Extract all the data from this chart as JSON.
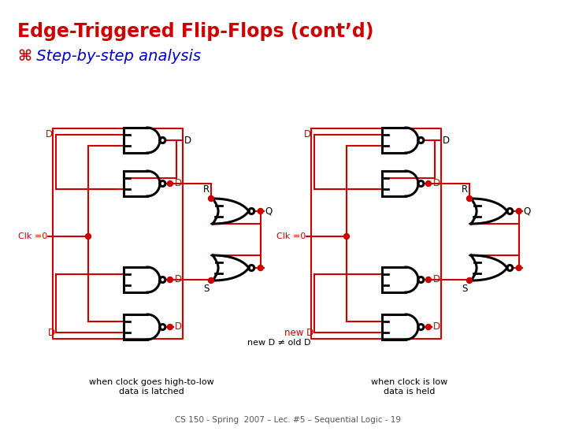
{
  "title": "Edge-Triggered Flip-Flops (cont’d)",
  "subtitle_symbol": "⌘",
  "subtitle_text": " Step-by-step analysis",
  "title_color": "#cc0000",
  "subtitle_symbol_color": "#cc0000",
  "subtitle_text_color": "#0000cc",
  "background_color": "#ffffff",
  "wire_color_active": "#cc0000",
  "gate_color": "#000000",
  "dot_color": "#cc0000",
  "footer_text": "CS 150 - Spring  2007 – Lec. #5 – Sequential Logic - 19",
  "footer_color": "#555555",
  "left_caption": "when clock goes high-to-low\ndata is latched",
  "right_caption": "when clock is low\ndata is held",
  "lw_gate": 2.2,
  "lw_wire": 1.5,
  "dot_r": 3.5,
  "bub_r": 3.5
}
